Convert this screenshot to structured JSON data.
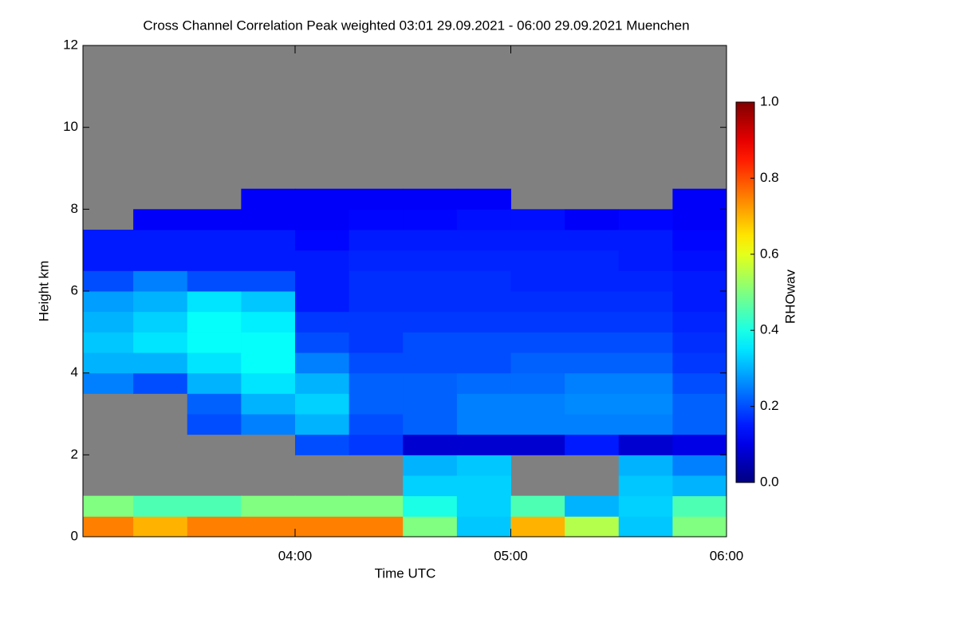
{
  "chart_data": {
    "type": "heatmap",
    "title": "Cross Channel Correlation Peak weighted   03:01 29.09.2021 - 06:00 29.09.2021 Muenchen",
    "xlabel": "Time UTC",
    "ylabel": "Height km",
    "colorbar_label": "RHOwav",
    "colormap": "jet",
    "nodata_color": "#808080",
    "xlim": [
      181,
      360
    ],
    "xticks": [
      {
        "value": 240,
        "label": "04:00"
      },
      {
        "value": 300,
        "label": "05:00"
      },
      {
        "value": 360,
        "label": "06:00"
      }
    ],
    "ylim": [
      0,
      12
    ],
    "yticks": [
      0,
      2,
      4,
      6,
      8,
      10,
      12
    ],
    "clim": [
      0,
      1
    ],
    "cticks": [
      {
        "value": 0,
        "label": "0.0"
      },
      {
        "value": 0.2,
        "label": "0.2"
      },
      {
        "value": 0.4,
        "label": "0.4"
      },
      {
        "value": 0.6,
        "label": "0.6"
      },
      {
        "value": 0.8,
        "label": "0.8"
      },
      {
        "value": 1,
        "label": "1.0"
      }
    ],
    "xbins": [
      181,
      195,
      210,
      225,
      240,
      255,
      270,
      285,
      300,
      315,
      330,
      345,
      360
    ],
    "ybins": [
      0,
      0.5,
      1,
      1.5,
      2,
      2.5,
      3,
      3.5,
      4,
      4.5,
      5,
      5.5,
      6,
      6.5,
      7,
      7.5,
      8,
      8.5,
      9
    ],
    "values": [
      [
        0.75,
        0.5,
        null,
        null,
        null,
        null,
        null,
        0.25,
        0.3,
        0.32,
        0.3,
        0.28,
        0.2,
        0.15,
        0.15,
        null,
        null,
        null
      ],
      [
        0.7,
        0.45,
        null,
        null,
        null,
        null,
        null,
        0.2,
        0.3,
        0.35,
        0.33,
        0.3,
        0.25,
        0.15,
        0.15,
        0.12,
        null,
        null
      ],
      [
        0.75,
        0.45,
        null,
        null,
        null,
        0.2,
        0.22,
        0.3,
        0.35,
        0.38,
        0.38,
        0.35,
        0.2,
        0.15,
        0.15,
        0.12,
        null,
        null
      ],
      [
        0.75,
        0.5,
        null,
        null,
        null,
        0.25,
        0.3,
        0.35,
        0.38,
        0.38,
        0.36,
        0.32,
        0.2,
        0.15,
        0.15,
        0.12,
        0.12,
        null
      ],
      [
        0.75,
        0.5,
        null,
        null,
        0.2,
        0.3,
        0.33,
        0.3,
        0.25,
        0.2,
        0.18,
        0.15,
        0.15,
        0.15,
        0.13,
        0.12,
        0.12,
        null
      ],
      [
        0.75,
        0.5,
        null,
        null,
        0.18,
        0.2,
        0.22,
        0.22,
        0.2,
        0.18,
        0.18,
        0.17,
        0.17,
        0.16,
        0.15,
        0.13,
        0.12,
        null
      ],
      [
        0.5,
        0.4,
        0.33,
        0.3,
        0.08,
        0.22,
        0.22,
        0.22,
        0.2,
        0.2,
        0.18,
        0.17,
        0.17,
        0.16,
        0.15,
        0.13,
        0.12,
        null
      ],
      [
        0.32,
        0.33,
        0.33,
        0.32,
        0.08,
        0.25,
        0.25,
        0.23,
        0.2,
        0.2,
        0.18,
        0.17,
        0.17,
        0.16,
        0.15,
        0.14,
        0.12,
        null
      ],
      [
        0.7,
        0.45,
        null,
        null,
        0.08,
        0.25,
        0.25,
        0.23,
        0.22,
        0.2,
        0.18,
        0.17,
        0.16,
        0.16,
        0.15,
        0.14,
        null,
        null
      ],
      [
        0.55,
        0.3,
        null,
        null,
        0.15,
        0.25,
        0.26,
        0.25,
        0.22,
        0.2,
        0.18,
        0.17,
        0.16,
        0.16,
        0.15,
        0.12,
        null,
        null
      ],
      [
        0.32,
        0.33,
        0.32,
        0.3,
        0.08,
        0.25,
        0.26,
        0.25,
        0.22,
        0.2,
        0.18,
        0.17,
        0.16,
        0.15,
        0.15,
        0.13,
        null,
        null
      ],
      [
        0.5,
        0.45,
        0.3,
        0.25,
        0.1,
        0.22,
        0.22,
        0.2,
        0.18,
        0.17,
        0.16,
        0.15,
        0.15,
        0.14,
        0.13,
        0.12,
        0.12,
        null
      ]
    ]
  }
}
